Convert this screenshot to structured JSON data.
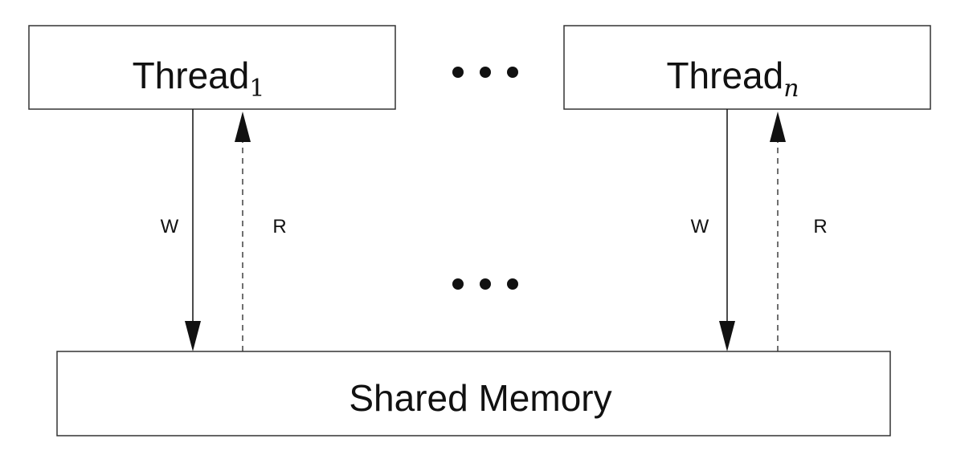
{
  "thread_1": {
    "label": "Thread",
    "subscript": "1"
  },
  "thread_n": {
    "label": "Thread",
    "subscript": "n"
  },
  "shared_memory": {
    "label": "Shared Memory"
  },
  "edges": {
    "write_label": "W",
    "read_label": "R"
  },
  "colors": {
    "stroke": "#333333",
    "text": "#111111",
    "background": "#ffffff"
  }
}
